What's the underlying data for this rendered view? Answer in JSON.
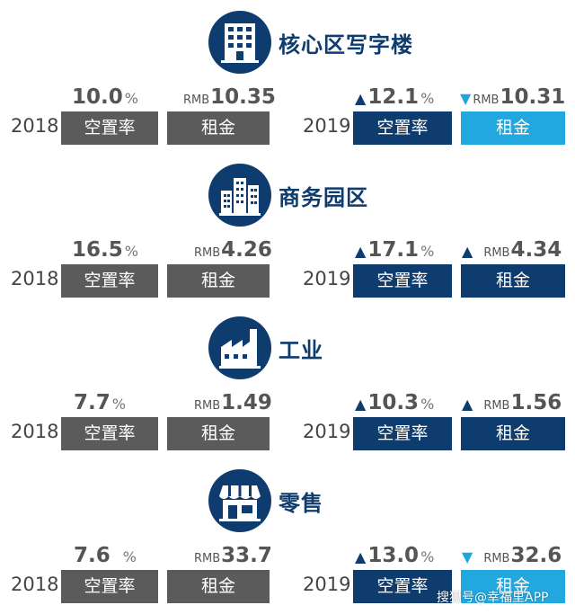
{
  "sections": [
    {
      "title": "核心区写字楼",
      "icon": "office-building-icon",
      "y2018": "2018",
      "y2019": "2019",
      "vacancy_2018": "10.0",
      "rent_2018": "10.35",
      "vacancy_2019": "12.1",
      "rent_2019": "10.31",
      "vacancy_2019_trend": "up",
      "rent_2019_trend": "down",
      "vacancy_label": "空置率",
      "rent_label": "租金"
    },
    {
      "title": "商务园区",
      "icon": "business-park-icon",
      "y2018": "2018",
      "y2019": "2019",
      "vacancy_2018": "16.5",
      "rent_2018": "4.26",
      "vacancy_2019": "17.1",
      "rent_2019": "4.34",
      "vacancy_2019_trend": "up",
      "rent_2019_trend": "up",
      "vacancy_label": "空置率",
      "rent_label": "租金"
    },
    {
      "title": "工业",
      "icon": "factory-icon",
      "y2018": "2018",
      "y2019": "2019",
      "vacancy_2018": "7.7",
      "rent_2018": "1.49",
      "vacancy_2019": "10.3",
      "rent_2019": "1.56",
      "vacancy_2019_trend": "up",
      "rent_2019_trend": "up",
      "vacancy_label": "空置率",
      "rent_label": "租金"
    },
    {
      "title": "零售",
      "icon": "storefront-icon",
      "y2018": "2018",
      "y2019": "2019",
      "vacancy_2018": "7.6",
      "rent_2018": "33.7",
      "vacancy_2019": "13.0",
      "rent_2019": "32.6",
      "vacancy_2019_trend": "up",
      "rent_2019_trend": "down",
      "vacancy_label": "空置率",
      "rent_label": "租金"
    }
  ],
  "units": {
    "percent": "%",
    "currency": "RMB"
  },
  "arrows": {
    "up": "▲",
    "down": "▼"
  },
  "watermark": "搜狐号@幸福里APP",
  "colors": {
    "navy": "#0f3c6e",
    "cyan": "#22a8df",
    "grey": "#5b5b5b"
  }
}
